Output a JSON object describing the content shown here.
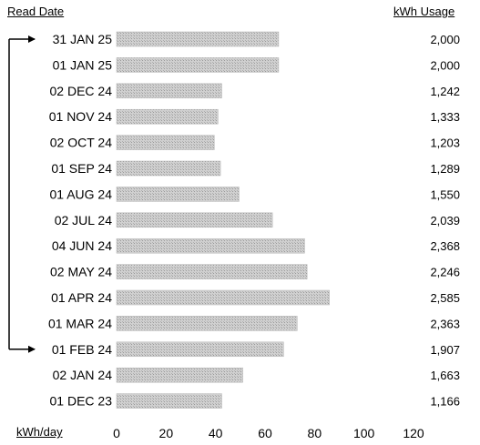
{
  "headers": {
    "left": "Read Date",
    "right": "kWh  Usage"
  },
  "axis_title": "kWh/day",
  "chart_data": {
    "type": "bar",
    "orientation": "horizontal",
    "xlabel": "kWh/day",
    "xlim": [
      0,
      120
    ],
    "xticks": [
      "0",
      "20",
      "40",
      "60",
      "80",
      "100",
      "120"
    ],
    "grid": false,
    "bar_color": "#c8c8c8",
    "categories": [
      "31 JAN 25",
      "01 JAN 25",
      "02 DEC 24",
      "01 NOV 24",
      "02 OCT 24",
      "01 SEP 24",
      "01 AUG 24",
      "02 JUL 24",
      "04 JUN 24",
      "02 MAY 24",
      "01 APR 24",
      "01 MAR 24",
      "01 FEB 24",
      "02 JAN 24",
      "01 DEC 23"
    ],
    "values": [
      65.5,
      65.5,
      42.5,
      41,
      39.5,
      42,
      49.5,
      63,
      76,
      77,
      86,
      73,
      67.5,
      51,
      42.5
    ],
    "usage_labels": [
      "2,000",
      "2,000",
      "1,242",
      "1,333",
      "1,203",
      "1,289",
      "1,550",
      "2,039",
      "2,368",
      "2,246",
      "2,585",
      "2,363",
      "1,907",
      "1,663",
      "1,166"
    ],
    "comparison_bracket": {
      "from": "31 JAN 25",
      "to": "01 FEB 24"
    }
  }
}
